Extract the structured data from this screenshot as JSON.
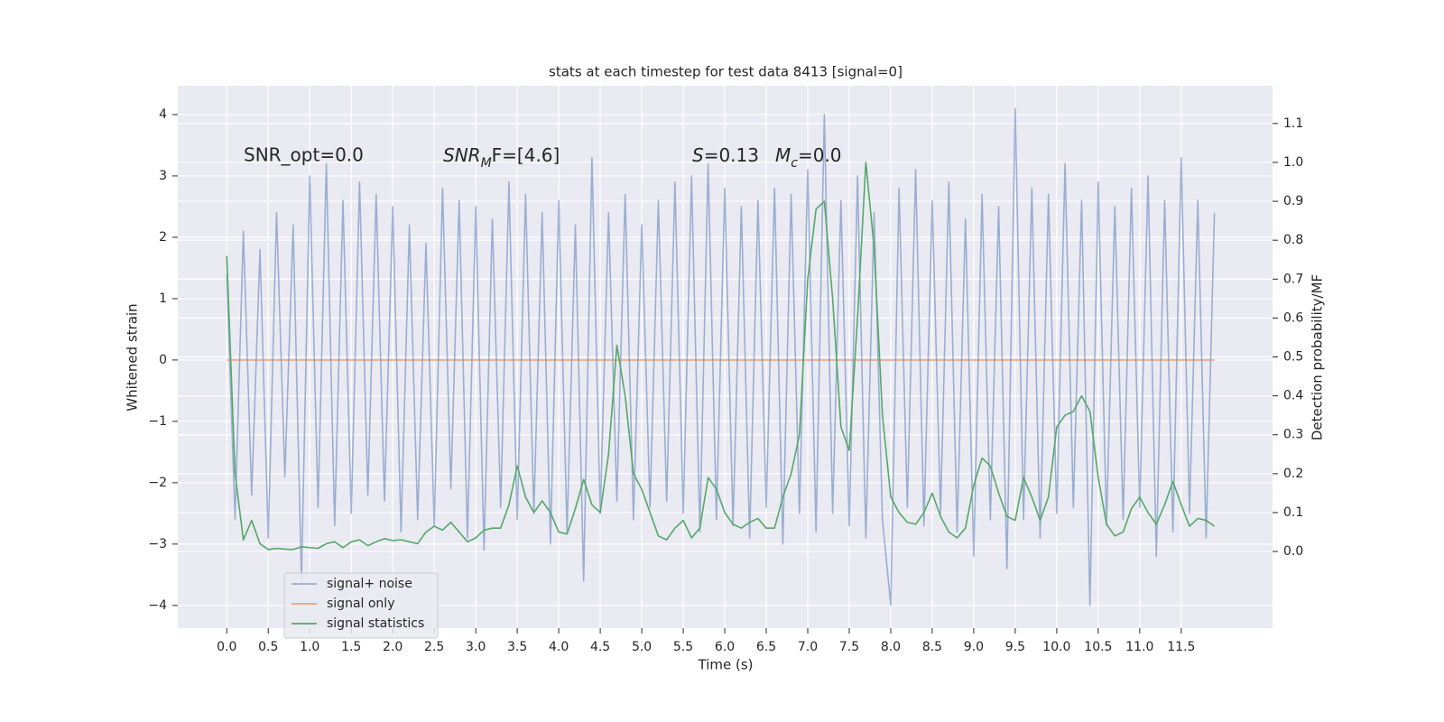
{
  "chart_data": {
    "type": "line",
    "title": "stats at each timestep for test data 8413 [signal=0]",
    "x_label": "Time (s)",
    "y_label": "Whitened strain",
    "y2_label": "Detection probability/MF",
    "annotations": [
      "SNR_opt=0.0",
      {
        "base": "SNR",
        "sub": "M",
        "rest": "F=[4.6]"
      },
      {
        "base": "S",
        "rest": "=0.13"
      },
      {
        "base": "M",
        "sub": "c",
        "rest": "=0.0"
      }
    ],
    "x": [
      0,
      0.1,
      0.2,
      0.3,
      0.4,
      0.5,
      0.6,
      0.7,
      0.8,
      0.9,
      1.0,
      1.1,
      1.2,
      1.3,
      1.4,
      1.5,
      1.6,
      1.7,
      1.8,
      1.9,
      2.0,
      2.1,
      2.2,
      2.3,
      2.4,
      2.5,
      2.6,
      2.7,
      2.8,
      2.9,
      3.0,
      3.1,
      3.2,
      3.3,
      3.4,
      3.5,
      3.6,
      3.7,
      3.8,
      3.9,
      4.0,
      4.1,
      4.2,
      4.3,
      4.4,
      4.5,
      4.6,
      4.7,
      4.8,
      4.9,
      5.0,
      5.1,
      5.2,
      5.3,
      5.4,
      5.5,
      5.6,
      5.7,
      5.8,
      5.9,
      6.0,
      6.1,
      6.2,
      6.3,
      6.4,
      6.5,
      6.6,
      6.7,
      6.8,
      6.9,
      7.0,
      7.1,
      7.2,
      7.3,
      7.4,
      7.5,
      7.6,
      7.7,
      7.8,
      7.9,
      8.0,
      8.1,
      8.2,
      8.3,
      8.4,
      8.5,
      8.6,
      8.7,
      8.8,
      8.9,
      9.0,
      9.1,
      9.2,
      9.3,
      9.4,
      9.5,
      9.6,
      9.7,
      9.8,
      9.9,
      10.0,
      10.1,
      10.2,
      10.3,
      10.4,
      10.5,
      10.6,
      10.7,
      10.8,
      10.9,
      11.0,
      11.1,
      11.2,
      11.3,
      11.4,
      11.5,
      11.6,
      11.7,
      11.8,
      11.9
    ],
    "series": [
      {
        "name": "signal+ noise",
        "color": "#4c72b0",
        "opacity": 0.5,
        "values": [
          1.4,
          -2.6,
          2.1,
          -2.2,
          1.8,
          -2.9,
          2.4,
          -1.9,
          2.2,
          -3.6,
          3.0,
          -2.4,
          3.2,
          -2.7,
          2.6,
          -2.5,
          2.9,
          -2.2,
          2.7,
          -2.3,
          2.5,
          -2.8,
          2.2,
          -2.6,
          1.9,
          -2.7,
          2.8,
          -2.1,
          2.6,
          -2.9,
          2.5,
          -3.1,
          2.3,
          -2.4,
          2.9,
          -2.6,
          2.7,
          -2.5,
          2.4,
          -3.0,
          2.6,
          -2.8,
          2.2,
          -3.6,
          3.3,
          -2.5,
          2.4,
          -2.3,
          2.7,
          -2.6,
          2.2,
          -2.4,
          2.6,
          -2.3,
          2.9,
          -2.5,
          3.0,
          -2.8,
          3.2,
          -2.6,
          2.8,
          -2.7,
          2.5,
          -2.9,
          2.6,
          -2.4,
          2.8,
          -3.0,
          2.7,
          -2.5,
          3.1,
          -2.8,
          4.0,
          -2.5,
          2.6,
          -2.7,
          3.0,
          -2.9,
          2.4,
          -2.6,
          -4.0,
          2.8,
          -2.4,
          3.1,
          -2.7,
          2.6,
          -2.5,
          2.9,
          -2.8,
          2.3,
          -3.2,
          2.7,
          -2.6,
          2.5,
          -3.4,
          4.1,
          -2.6,
          2.8,
          -2.9,
          2.7,
          -2.5,
          3.2,
          -2.4,
          2.6,
          -4.0,
          2.9,
          -2.7,
          2.5,
          -2.6,
          2.8,
          -2.4,
          3.0,
          -3.2,
          2.6,
          -2.8,
          3.3,
          -2.5,
          2.6,
          -2.9,
          2.4
        ]
      },
      {
        "name": "signal only",
        "color": "#dd8452",
        "opacity": 0.7,
        "values": [
          0,
          0,
          0,
          0,
          0,
          0,
          0,
          0,
          0,
          0,
          0,
          0,
          0,
          0,
          0,
          0,
          0,
          0,
          0,
          0,
          0,
          0,
          0,
          0,
          0,
          0,
          0,
          0,
          0,
          0,
          0,
          0,
          0,
          0,
          0,
          0,
          0,
          0,
          0,
          0,
          0,
          0,
          0,
          0,
          0,
          0,
          0,
          0,
          0,
          0,
          0,
          0,
          0,
          0,
          0,
          0,
          0,
          0,
          0,
          0,
          0,
          0,
          0,
          0,
          0,
          0,
          0,
          0,
          0,
          0,
          0,
          0,
          0,
          0,
          0,
          0,
          0,
          0,
          0,
          0,
          0,
          0,
          0,
          0,
          0,
          0,
          0,
          0,
          0,
          0,
          0,
          0,
          0,
          0,
          0,
          0,
          0,
          0,
          0,
          0,
          0,
          0,
          0,
          0,
          0,
          0,
          0,
          0,
          0,
          0,
          0,
          0,
          0,
          0,
          0,
          0,
          0,
          0,
          0,
          0
        ]
      },
      {
        "name": "signal statistics",
        "color": "#55a868",
        "opacity": 1,
        "axis": "y2",
        "values": [
          0.76,
          0.2,
          0.03,
          0.08,
          0.02,
          0.005,
          0.008,
          0.006,
          0.005,
          0.012,
          0.01,
          0.008,
          0.02,
          0.025,
          0.01,
          0.025,
          0.03,
          0.015,
          0.025,
          0.033,
          0.028,
          0.03,
          0.025,
          0.02,
          0.05,
          0.065,
          0.055,
          0.075,
          0.05,
          0.025,
          0.035,
          0.055,
          0.06,
          0.06,
          0.12,
          0.22,
          0.14,
          0.1,
          0.13,
          0.1,
          0.05,
          0.045,
          0.11,
          0.185,
          0.12,
          0.1,
          0.25,
          0.53,
          0.4,
          0.2,
          0.16,
          0.1,
          0.04,
          0.03,
          0.06,
          0.08,
          0.035,
          0.06,
          0.19,
          0.16,
          0.1,
          0.07,
          0.06,
          0.075,
          0.085,
          0.06,
          0.06,
          0.14,
          0.2,
          0.3,
          0.7,
          0.88,
          0.9,
          0.65,
          0.32,
          0.26,
          0.6,
          1.0,
          0.78,
          0.35,
          0.14,
          0.1,
          0.075,
          0.07,
          0.1,
          0.15,
          0.09,
          0.05,
          0.035,
          0.06,
          0.17,
          0.24,
          0.22,
          0.15,
          0.09,
          0.08,
          0.19,
          0.14,
          0.08,
          0.14,
          0.32,
          0.35,
          0.36,
          0.4,
          0.36,
          0.19,
          0.07,
          0.04,
          0.05,
          0.11,
          0.14,
          0.1,
          0.07,
          0.12,
          0.18,
          0.12,
          0.065,
          0.085,
          0.08,
          0.065
        ]
      }
    ],
    "xlim": [
      -0.59,
      12.6
    ],
    "ylim": [
      -4.37,
      4.47
    ],
    "y2lim": [
      -0.197,
      1.197
    ],
    "xticks": [
      {
        "value": 0,
        "label": "0.0"
      },
      0.5,
      {
        "value": 1,
        "label": "1.0"
      },
      1.5,
      {
        "value": 2,
        "label": "2.0"
      },
      2.5,
      {
        "value": 3,
        "label": "3.0"
      },
      3.5,
      {
        "value": 4,
        "label": "4.0"
      },
      4.5,
      {
        "value": 5,
        "label": "5.0"
      },
      5.5,
      {
        "value": 6,
        "label": "6.0"
      },
      6.5,
      {
        "value": 7,
        "label": "7.0"
      },
      7.5,
      {
        "value": 8,
        "label": "8.0"
      },
      8.5,
      {
        "value": 9,
        "label": "9.0"
      },
      9.5,
      {
        "value": 10,
        "label": "10.0"
      },
      10.5,
      {
        "value": 11,
        "label": "11.0"
      },
      11.5
    ],
    "yticks": [
      {
        "value": -4,
        "label": "−4"
      },
      {
        "value": -3,
        "label": "−3"
      },
      {
        "value": -2,
        "label": "−2"
      },
      {
        "value": -1,
        "label": "−1"
      },
      0,
      1,
      2,
      3,
      4
    ],
    "y2ticks": [
      {
        "value": 0,
        "label": "0.0"
      },
      0.1,
      0.2,
      0.3,
      0.4,
      0.5,
      0.6,
      0.7,
      0.8,
      0.9,
      {
        "value": 1,
        "label": "1.0"
      },
      1.1
    ],
    "grid": true,
    "legend": "lower left"
  }
}
